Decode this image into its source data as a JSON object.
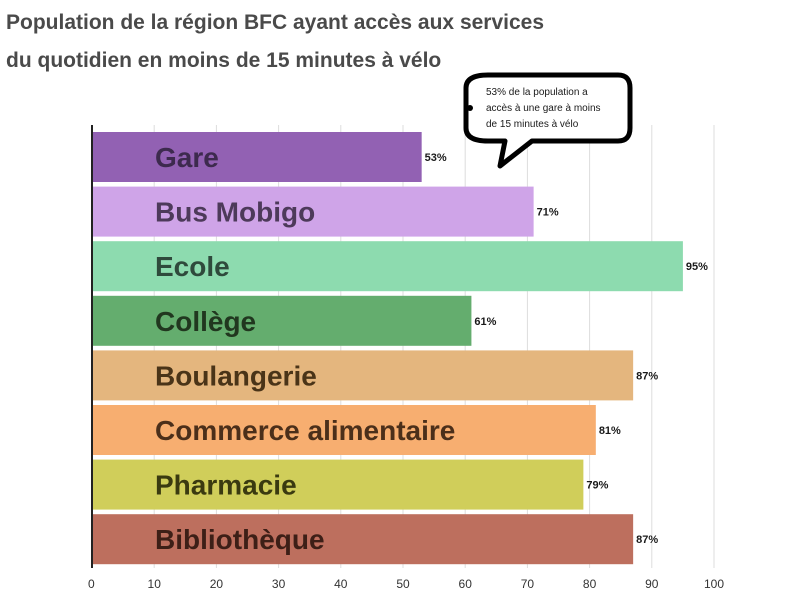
{
  "chart_data": {
    "type": "bar",
    "orientation": "horizontal",
    "title_lines": [
      "Population de la région BFC ayant accès aux services",
      "du quotidien en moins de 15 minutes à vélo"
    ],
    "categories": [
      "Gare",
      "Bus Mobigo",
      "Ecole",
      "Collège",
      "Boulangerie",
      "Commerce alimentaire",
      "Pharmacie",
      "Bibliothèque"
    ],
    "values": [
      53,
      71,
      95,
      61,
      87,
      81,
      79,
      87
    ],
    "value_labels": [
      "53%",
      "71%",
      "95%",
      "61%",
      "87%",
      "81%",
      "79%",
      "87%"
    ],
    "colors": [
      "#9261b3",
      "#cfa4e8",
      "#8ddbaf",
      "#64ad6e",
      "#e4b67e",
      "#f7ae70",
      "#d0ce5a",
      "#bd6f5e"
    ],
    "label_colors": [
      "#3d2a4e",
      "#4d3a5a",
      "#2f4a3c",
      "#21371f",
      "#4a3418",
      "#4b2f1a",
      "#3a3a10",
      "#3d1f17"
    ],
    "xlim": [
      0,
      100
    ],
    "x_ticks": [
      0,
      10,
      20,
      30,
      40,
      50,
      60,
      70,
      80,
      90,
      100
    ],
    "x_tick_labels": [
      "0",
      "10",
      "20",
      "30",
      "40",
      "50",
      "60",
      "70",
      "80",
      "90",
      "100"
    ],
    "grid": true,
    "annotation": {
      "lines": [
        "53% de la population a",
        "accès à une gare à moins",
        "de 15 minutes à vélo"
      ],
      "target_category": "Gare"
    }
  }
}
